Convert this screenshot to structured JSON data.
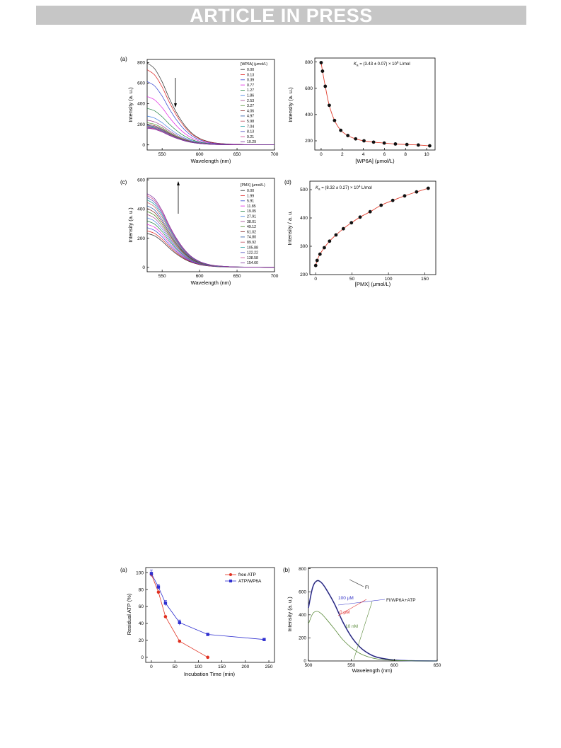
{
  "banner": {
    "text": "ARTICLE IN PRESS"
  },
  "colors": {
    "spectra": [
      "#222222",
      "#e02020",
      "#3040d0",
      "#e020e0",
      "#208040",
      "#3a7adf",
      "#a04090",
      "#4a8a2a",
      "#802020",
      "#2050a0",
      "#c05060",
      "#20a0a0",
      "#5050c0",
      "#d04090",
      "#7a2a9a"
    ],
    "fit": "#e04030",
    "point": "#111111",
    "free_atp": "#e03020",
    "atp_wp6a": "#3030d0",
    "fl_black": "#2a2a2a",
    "fl_blue": "#3636c8",
    "fl_green": "#5a8a3a",
    "label_red": "#e03030"
  },
  "figure1": {
    "panel_a": {
      "letter": "(a)",
      "legend_title": "[WP6A] (μmol/L)",
      "xlabel": "Wavelength (nm)",
      "ylabel": "Intensity (a. u.)",
      "xticks": [
        "550",
        "600",
        "650",
        "700"
      ],
      "yticks": [
        "0",
        "200",
        "400",
        "600",
        "800"
      ],
      "arrow": "down",
      "chart_data": {
        "type": "line",
        "xlabel": "Wavelength (nm)",
        "ylabel": "Intensity (a. u.)",
        "xlim": [
          530,
          700
        ],
        "ylim": [
          -50,
          830
        ],
        "x": [
          530,
          540,
          550,
          560,
          570,
          580,
          590,
          600,
          610,
          620,
          640,
          660,
          680,
          700
        ],
        "series": [
          {
            "name": "0.00",
            "peak": 795
          },
          {
            "name": "0.13",
            "peak": 730
          },
          {
            "name": "0.39",
            "peak": 615
          },
          {
            "name": "0.77",
            "peak": 470
          },
          {
            "name": "1.27",
            "peak": 355
          },
          {
            "name": "1.86",
            "peak": 280
          },
          {
            "name": "2.53",
            "peak": 240
          },
          {
            "name": "3.27",
            "peak": 215
          },
          {
            "name": "4.06",
            "peak": 200
          },
          {
            "name": "4.97",
            "peak": 190
          },
          {
            "name": "5.98",
            "peak": 183
          },
          {
            "name": "7.04",
            "peak": 176
          },
          {
            "name": "8.13",
            "peak": 172
          },
          {
            "name": "9.21",
            "peak": 168
          },
          {
            "name": "10.29",
            "peak": 162
          }
        ],
        "shape": [
          1.0,
          0.93,
          0.77,
          0.56,
          0.38,
          0.24,
          0.14,
          0.08,
          0.045,
          0.025,
          0.01,
          0.004,
          0.002,
          0.001
        ]
      }
    },
    "panel_b": {
      "annotation_k": "K",
      "annotation_sub": "a",
      "annotation_rest": " = (3.43 ± 0.07) × 10",
      "annotation_sup": "6",
      "annotation_unit": " L/mol",
      "xlabel": "[WP6A] (μmol/L)",
      "ylabel": "Intensity (a. u.)",
      "xticks": [
        "0",
        "2",
        "4",
        "6",
        "8",
        "10"
      ],
      "yticks": [
        "200",
        "400",
        "600",
        "800"
      ],
      "chart_data": {
        "type": "scatter",
        "xlim": [
          -0.6,
          10.8
        ],
        "ylim": [
          130,
          830
        ],
        "x": [
          0,
          0.13,
          0.39,
          0.77,
          1.27,
          1.86,
          2.53,
          3.27,
          4.06,
          4.97,
          5.98,
          7.04,
          8.13,
          9.21,
          10.29
        ],
        "y": [
          795,
          730,
          615,
          470,
          355,
          280,
          240,
          215,
          200,
          190,
          183,
          176,
          172,
          168,
          162
        ]
      }
    },
    "panel_c": {
      "letter": "(c)",
      "legend_title": "[PMX] (μmol/L)",
      "xlabel": "Wavelength (nm)",
      "ylabel": "Intensity (a. u.)",
      "xticks": [
        "550",
        "600",
        "650",
        "700"
      ],
      "yticks": [
        "0",
        "200",
        "400",
        "600"
      ],
      "arrow": "up",
      "chart_data": {
        "type": "line",
        "xlabel": "Wavelength (nm)",
        "ylabel": "Intensity (a. u.)",
        "xlim": [
          530,
          700
        ],
        "ylim": [
          -30,
          610
        ],
        "x": [
          530,
          540,
          550,
          560,
          570,
          580,
          590,
          600,
          610,
          620,
          640,
          660,
          680,
          700
        ],
        "series": [
          {
            "name": "0.00",
            "peak": 232
          },
          {
            "name": "1.99",
            "peak": 250
          },
          {
            "name": "5.91",
            "peak": 272
          },
          {
            "name": "11.85",
            "peak": 295
          },
          {
            "name": "19.05",
            "peak": 318
          },
          {
            "name": "27.91",
            "peak": 340
          },
          {
            "name": "38.01",
            "peak": 362
          },
          {
            "name": "49.12",
            "peak": 383
          },
          {
            "name": "61.02",
            "peak": 403
          },
          {
            "name": "74.80",
            "peak": 422
          },
          {
            "name": "89.92",
            "peak": 445
          },
          {
            "name": "105.88",
            "peak": 462
          },
          {
            "name": "122.22",
            "peak": 478
          },
          {
            "name": "138.58",
            "peak": 492
          },
          {
            "name": "154.60",
            "peak": 505
          }
        ],
        "shape": [
          1.0,
          0.93,
          0.77,
          0.56,
          0.38,
          0.24,
          0.14,
          0.08,
          0.045,
          0.025,
          0.01,
          0.004,
          0.002,
          0.001
        ]
      }
    },
    "panel_d": {
      "letter": "(d)",
      "annotation_k": "K",
      "annotation_sub": "a",
      "annotation_rest": " = (8.32 ± 0.27) × 10",
      "annotation_sup": "4",
      "annotation_unit": " L/mol",
      "xlabel": "[PMX] (μmol/L)",
      "ylabel": "Intensity / a. u.",
      "xticks": [
        "0",
        "50",
        "100",
        "150"
      ],
      "yticks": [
        "200",
        "300",
        "400",
        "500"
      ],
      "chart_data": {
        "type": "scatter",
        "xlim": [
          -8,
          165
        ],
        "ylim": [
          200,
          530
        ],
        "x": [
          0,
          1.99,
          5.91,
          11.85,
          19.05,
          27.91,
          38.01,
          49.12,
          61.02,
          74.8,
          89.92,
          105.88,
          122.22,
          138.58,
          154.6
        ],
        "y": [
          232,
          250,
          272,
          295,
          318,
          340,
          362,
          383,
          403,
          422,
          445,
          462,
          478,
          492,
          505
        ]
      }
    }
  },
  "figure2": {
    "panel_a": {
      "letter": "(a)",
      "xlabel": "Incubation Time (min)",
      "ylabel": "Residual ATP (%)",
      "xticks": [
        "0",
        "50",
        "100",
        "150",
        "200",
        "250"
      ],
      "yticks": [
        "0",
        "20",
        "40",
        "60",
        "80",
        "100"
      ],
      "chart_data": {
        "type": "line",
        "xlim": [
          -12,
          262
        ],
        "ylim": [
          -6,
          106
        ],
        "series": [
          {
            "name": "free ATP",
            "x": [
              0,
              15,
              30,
              60,
              120
            ],
            "y": [
              98,
              77,
              48,
              19,
              0
            ]
          },
          {
            "name": "ATP/WP6A",
            "x": [
              0,
              15,
              30,
              60,
              120,
              240
            ],
            "y": [
              99,
              83,
              64,
              41,
              27,
              21
            ],
            "err": [
              4,
              3,
              3,
              3,
              1.5,
              1.5
            ]
          }
        ]
      }
    },
    "panel_b": {
      "letter": "(b)",
      "xlabel": "Wavelength (nm)",
      "ylabel": "Intensity (a. u.)",
      "xticks": [
        "500",
        "550",
        "600",
        "650"
      ],
      "yticks": [
        "0",
        "200",
        "400",
        "600",
        "800"
      ],
      "label_fl": "Fl",
      "label_mix": "Fl/WP6A+ATP",
      "label_100": "100 μM",
      "label_0": "0 μM",
      "label_10": "10 nM",
      "chart_data": {
        "type": "line",
        "xlim": [
          500,
          650
        ],
        "ylim": [
          0,
          810
        ],
        "series": [
          {
            "name": "Fl",
            "x": [
              500,
              505,
              510,
              515,
              520,
              530,
              540,
              550,
              560,
              570,
              580,
              600,
              620,
              650
            ],
            "y": [
              460,
              640,
              695,
              680,
              630,
              500,
              340,
              210,
              120,
              65,
              32,
              8,
              2,
              0
            ]
          },
          {
            "name": "10 nM",
            "x": [
              500,
              505,
              510,
              515,
              520,
              530,
              540,
              550,
              560,
              570,
              580,
              600,
              620,
              650
            ],
            "y": [
              320,
              410,
              430,
              410,
              370,
              280,
              185,
              115,
              65,
              35,
              18,
              5,
              1,
              0
            ]
          }
        ]
      }
    }
  }
}
